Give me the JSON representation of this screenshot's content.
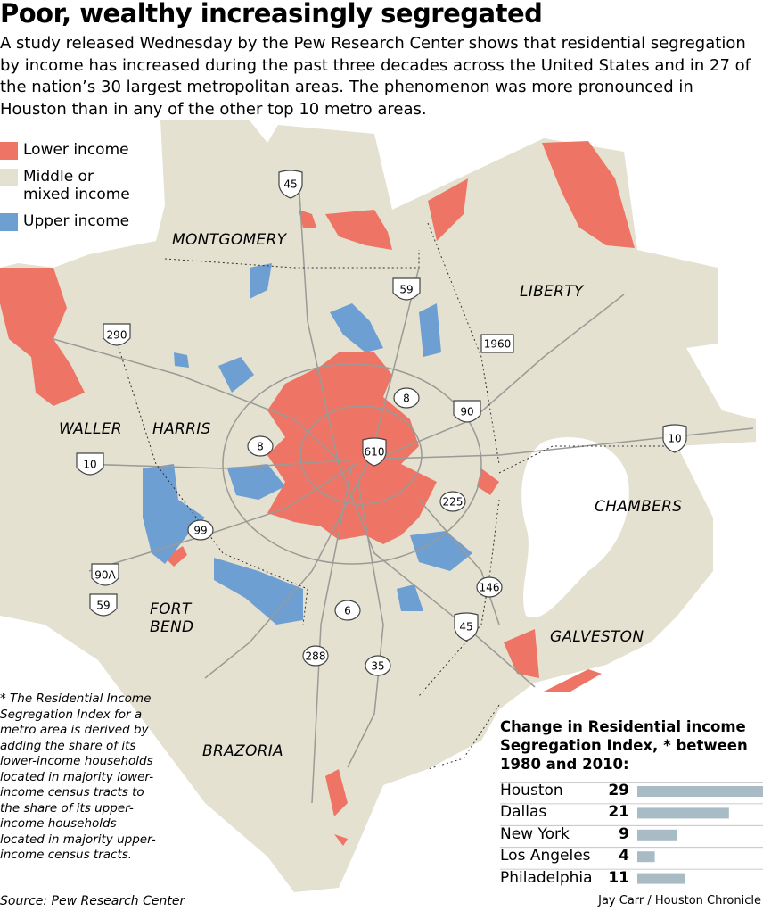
{
  "header": {
    "title": "Poor, wealthy increasingly segregated",
    "description": "A study released Wednesday by the Pew Research Center shows that residential segregation by income has increased during the past three decades across the United States and in 27 of the nation’s 30 largest metropolitan areas. The phenomenon was more pronounced in Houston than in any of the other top 10 metro areas."
  },
  "legend": [
    {
      "label": "Lower income",
      "color": "#ee7566"
    },
    {
      "label": "Middle or mixed income",
      "color": "#e4e1d0"
    },
    {
      "label": "Upper income",
      "color": "#6e9fd3"
    }
  ],
  "map": {
    "counties": [
      "MONTGOMERY",
      "LIBERTY",
      "WALLER",
      "HARRIS",
      "CHAMBERS",
      "FORT BEND",
      "GALVESTON",
      "BRAZORIA"
    ],
    "highways": [
      "45",
      "59",
      "290",
      "1960",
      "8",
      "90",
      "10",
      "8",
      "610",
      "10",
      "225",
      "99",
      "90A",
      "59",
      "146",
      "6",
      "45",
      "288",
      "35"
    ]
  },
  "footnote": "* The Residential Income Segregation Index for a metro area is derived by adding the share of its lower-income households located in majority lower-income census tracts to the share of its upper-income households located in majority upper-income census tracts.",
  "source": "Source: Pew Research Center",
  "credit": "Jay Carr / Houston Chronicle",
  "chart_data": {
    "type": "bar",
    "title": "Change in Residential income Segregation Index, * between 1980 and 2010:",
    "categories": [
      "Houston",
      "Dallas",
      "New York",
      "Los Angeles",
      "Philadelphia"
    ],
    "values": [
      29,
      21,
      9,
      4,
      11
    ],
    "color": "#a9bcc6"
  }
}
